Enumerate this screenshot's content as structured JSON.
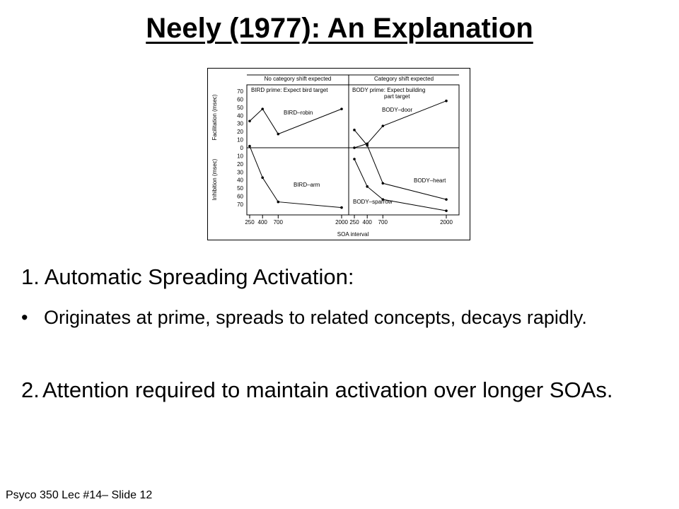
{
  "slide": {
    "title": "Neely (1977): An Explanation",
    "point1": "1. Automatic Spreading Activation:",
    "bullet_glyph": "•",
    "bullet1": "Originates at prime, spreads to related concepts, decays rapidly.",
    "point2_num": "2.",
    "point2": "Attention required to maintain activation over longer SOAs.",
    "footer": "Psyco 350 Lec #14– Slide 12"
  },
  "chart_data": {
    "type": "line",
    "xlabel": "SOA interval",
    "x_ticks": [
      250,
      400,
      700,
      2000
    ],
    "y_facilitation_label": "Facilitation (msec)",
    "y_inhibition_label": "Inhibition (msec)",
    "y_ticks_facilitation": [
      "70",
      "60",
      "50",
      "40",
      "30",
      "20",
      "10",
      "0"
    ],
    "y_ticks_inhibition": [
      "10",
      "20",
      "30",
      "40",
      "50",
      "60",
      "70"
    ],
    "ylim": [
      -70,
      70
    ],
    "panels": [
      {
        "header": "No category shift expected",
        "condition": "BIRD prime: Expect bird target",
        "series": [
          {
            "name": "BIRD–robin",
            "x": [
              250,
              400,
              700,
              2000
            ],
            "y": [
              33,
              48,
              17,
              48
            ]
          },
          {
            "name": "BIRD–arm",
            "x": [
              250,
              400,
              700,
              2000
            ],
            "y": [
              2,
              -37,
              -67,
              -74
            ]
          }
        ]
      },
      {
        "header": "Category shift expected",
        "condition_line1": "BODY prime: Expect building",
        "condition_line2": "part target",
        "series": [
          {
            "name": "BODY–door",
            "x": [
              250,
              400,
              700,
              2000
            ],
            "y": [
              0,
              5,
              27,
              58
            ]
          },
          {
            "name": "BODY–heart",
            "x": [
              250,
              400,
              700,
              2000
            ],
            "y": [
              22,
              3,
              -44,
              -64
            ]
          },
          {
            "name": "BODY–sparrow",
            "x": [
              250,
              400,
              700,
              2000
            ],
            "y": [
              -14,
              -48,
              -64,
              -78
            ]
          }
        ]
      }
    ]
  }
}
